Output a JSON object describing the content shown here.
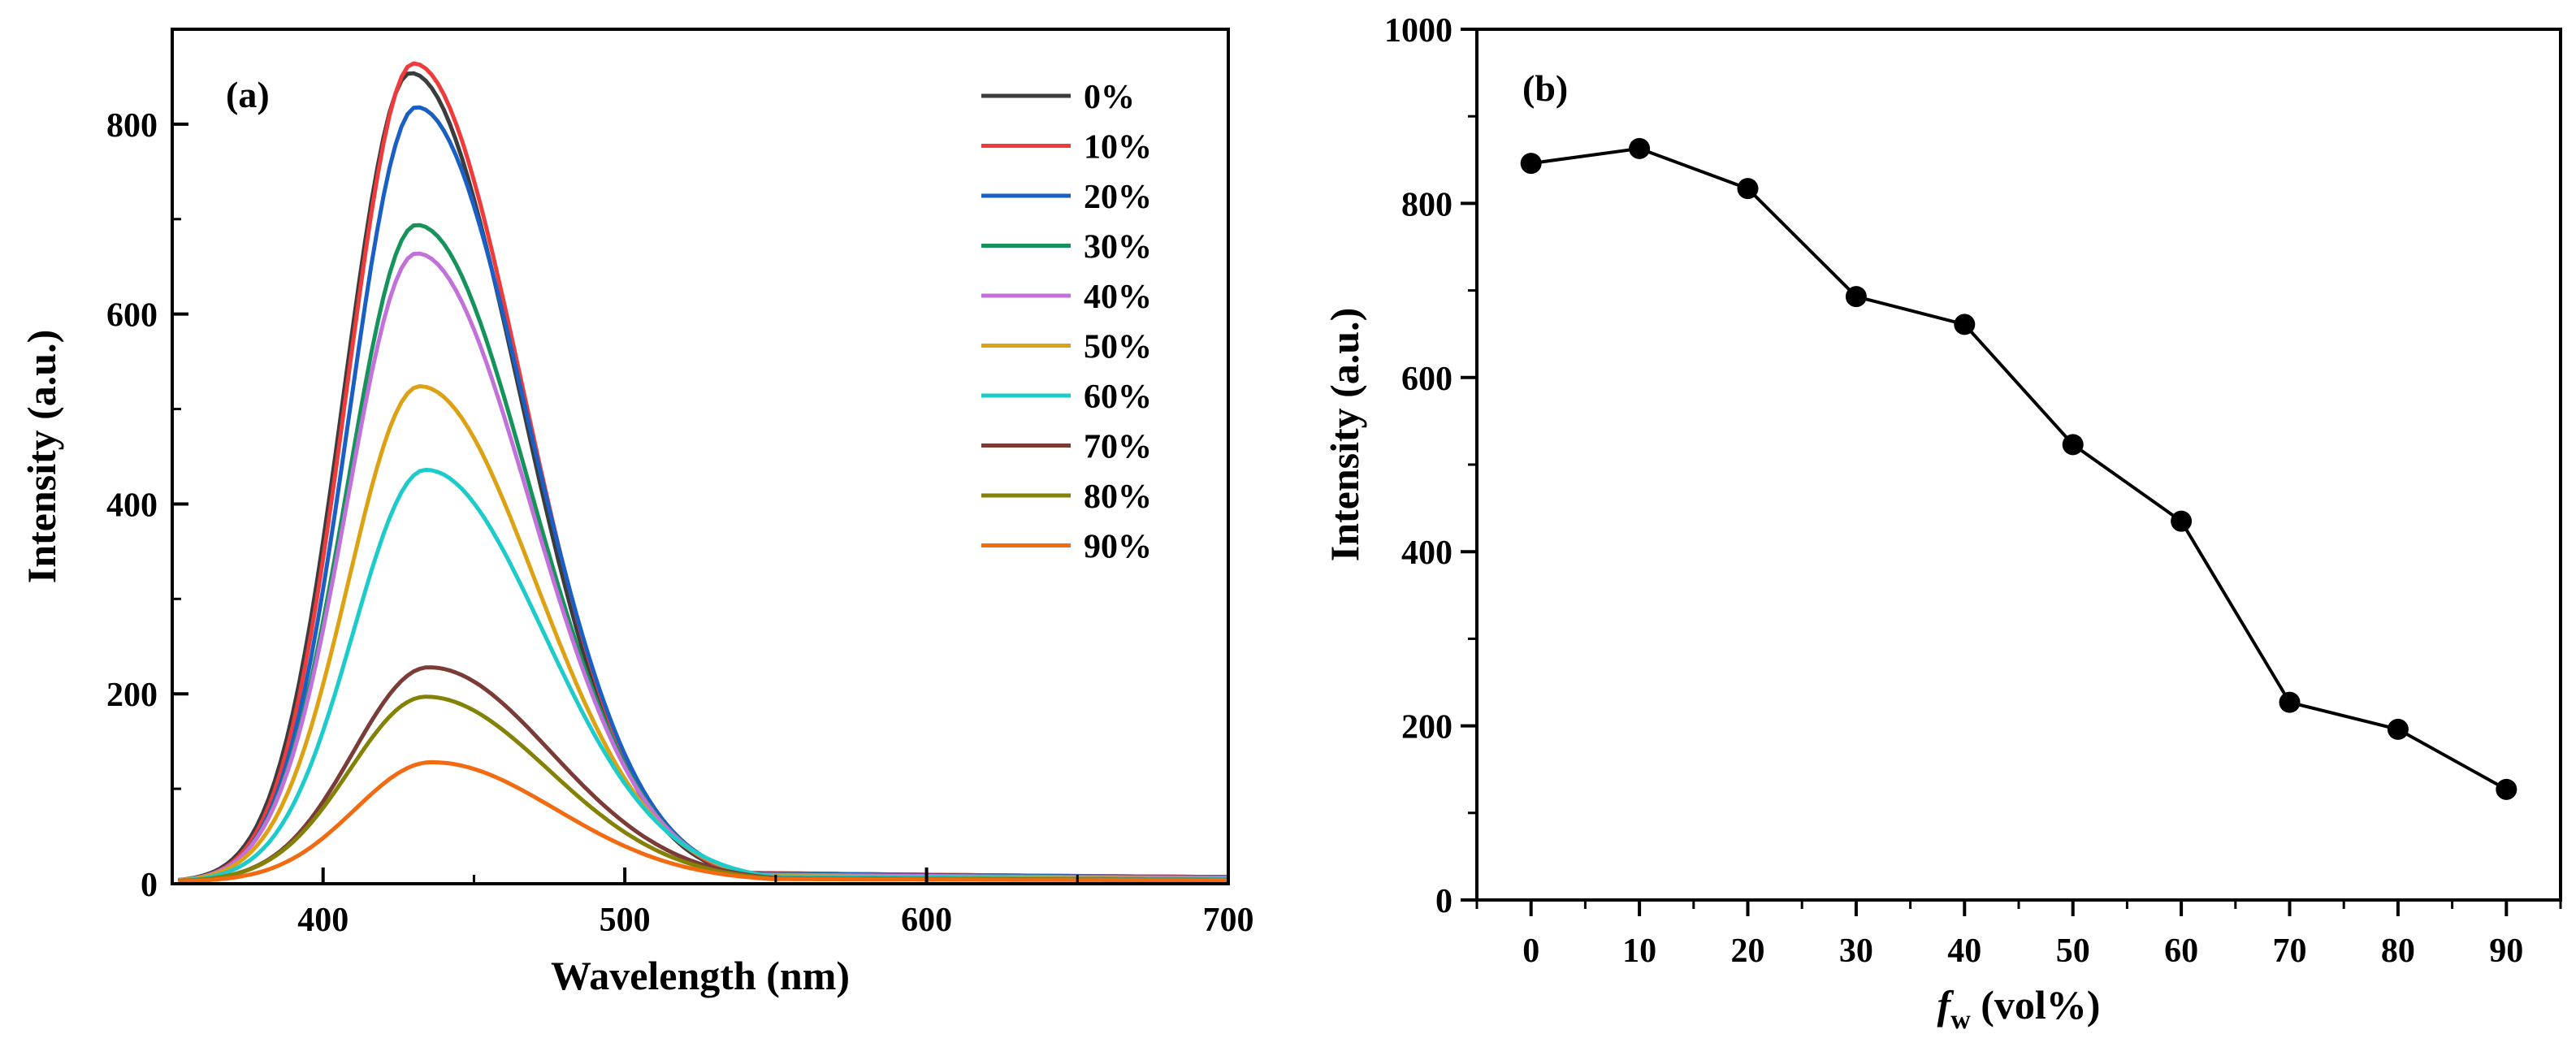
{
  "chart_data": [
    {
      "type": "line",
      "panel_label": "(a)",
      "xlabel": "Wavelength (nm)",
      "ylabel": "Intensity (a.u.)",
      "xlim": [
        350,
        700
      ],
      "ylim": [
        0,
        900
      ],
      "xticks": [
        400,
        500,
        600,
        700
      ],
      "xtick_labels": [
        "400",
        "500",
        "600",
        "700"
      ],
      "yticks": [
        0,
        200,
        400,
        600,
        800
      ],
      "ytick_labels": [
        "0",
        "200",
        "400",
        "600",
        "800"
      ],
      "legend_position": "top-right",
      "series": [
        {
          "name": "0%",
          "color": "#3c3c3c",
          "peak_x": 429,
          "peak": 852
        },
        {
          "name": "10%",
          "color": "#ef3b3b",
          "peak_x": 430,
          "peak": 862
        },
        {
          "name": "20%",
          "color": "#1a5fc4",
          "peak_x": 431,
          "peak": 816
        },
        {
          "name": "30%",
          "color": "#15935b",
          "peak_x": 431,
          "peak": 692
        },
        {
          "name": "40%",
          "color": "#c171d9",
          "peak_x": 431,
          "peak": 662
        },
        {
          "name": "50%",
          "color": "#dca213",
          "peak_x": 432,
          "peak": 522
        },
        {
          "name": "60%",
          "color": "#1ccbca",
          "peak_x": 434,
          "peak": 434
        },
        {
          "name": "70%",
          "color": "#7b3c37",
          "peak_x": 435,
          "peak": 226
        },
        {
          "name": "80%",
          "color": "#838106",
          "peak_x": 434,
          "peak": 195
        },
        {
          "name": "90%",
          "color": "#f26a12",
          "peak_x": 436,
          "peak": 126
        }
      ]
    },
    {
      "type": "line",
      "panel_label": "(b)",
      "xlabel_main": "f",
      "xlabel_sub": "w",
      "xlabel_rest": " (vol%)",
      "ylabel": "Intensity (a.u.)",
      "xlim": [
        -5,
        95
      ],
      "ylim": [
        0,
        1000
      ],
      "xticks": [
        0,
        10,
        20,
        30,
        40,
        50,
        60,
        70,
        80,
        90
      ],
      "xtick_labels": [
        "0",
        "10",
        "20",
        "30",
        "40",
        "50",
        "60",
        "70",
        "80",
        "90"
      ],
      "yticks": [
        0,
        200,
        400,
        600,
        800,
        1000
      ],
      "ytick_labels": [
        "0",
        "200",
        "400",
        "600",
        "800",
        "1000"
      ],
      "x": [
        0,
        10,
        20,
        30,
        40,
        50,
        60,
        70,
        80,
        90
      ],
      "values": [
        846,
        863,
        817,
        693,
        661,
        523,
        435,
        227,
        196,
        127
      ],
      "marker": "circle",
      "color": "#000000"
    }
  ]
}
